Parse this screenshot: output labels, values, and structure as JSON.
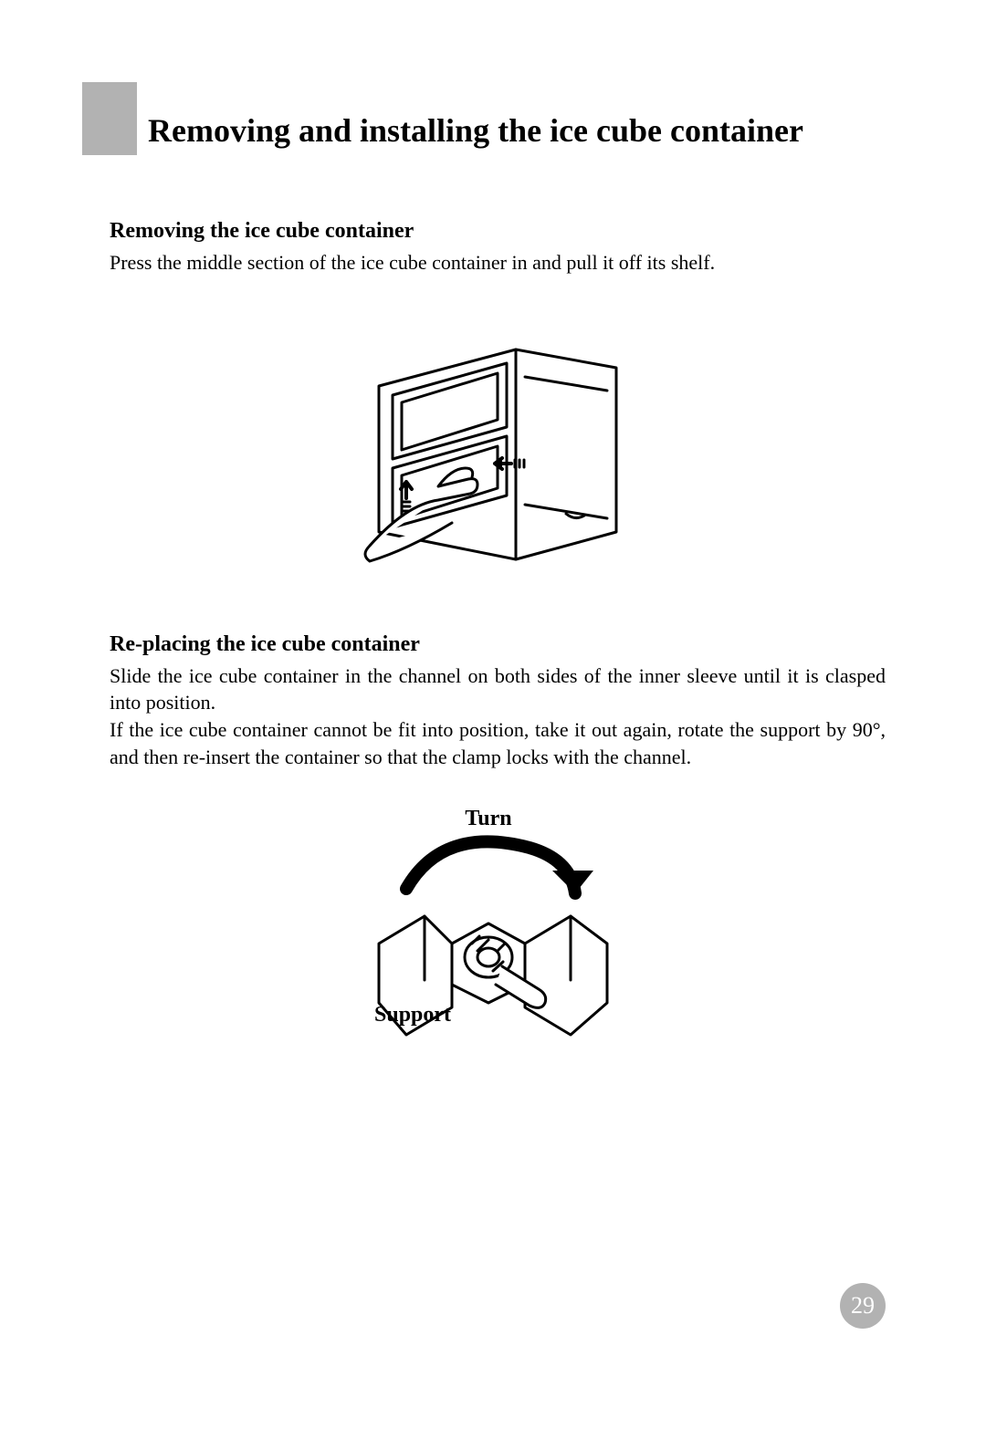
{
  "title": "Removing and installing the ice cube container",
  "section1": {
    "heading": "Removing the ice cube container",
    "body": "Press the middle section of the ice cube container in and pull it off its shelf."
  },
  "section2": {
    "heading": "Re-placing the ice cube container",
    "body": "Slide the ice cube container in the channel on both sides of the inner sleeve until it is clasped into position.\nIf the ice cube container cannot be fit into position, take it out again, rotate the support by 90°, and then re-insert the container so that the clamp locks with the channel."
  },
  "figure2": {
    "label_turn": "Turn",
    "label_support": "Support"
  },
  "page_number": "29",
  "colors": {
    "block": "#b2b2b2",
    "text": "#000000",
    "bg": "#ffffff",
    "pagenum_fg": "#ffffff"
  },
  "illustrations": {
    "fig1": "hand-removing-ice-container",
    "fig2": "rotate-support-bracket"
  }
}
